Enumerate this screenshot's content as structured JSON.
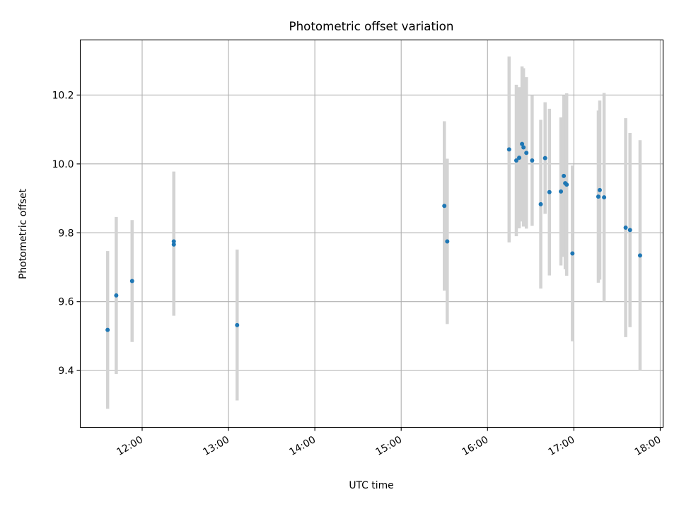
{
  "chart_data": {
    "type": "scatter",
    "title": "Photometric offset variation",
    "xlabel": "UTC time",
    "ylabel": "Photometric offset",
    "x_ticks": [
      "12:00",
      "13:00",
      "14:00",
      "15:00",
      "16:00",
      "17:00",
      "18:00"
    ],
    "y_ticks": [
      "9.4",
      "9.6",
      "9.8",
      "10.0",
      "10.2"
    ],
    "xlim": [
      "11:17",
      "18:02"
    ],
    "ylim": [
      9.235,
      10.36
    ],
    "grid": true,
    "legend": "none",
    "colors": {
      "points": "#1f77b4",
      "error_bars": "#d3d3d3",
      "grid": "#b0b0b0"
    },
    "points": [
      {
        "t": "11:36",
        "y": 9.518,
        "err": 0.229
      },
      {
        "t": "11:42",
        "y": 9.618,
        "err": 0.228
      },
      {
        "t": "11:53",
        "y": 9.66,
        "err": 0.177
      },
      {
        "t": "12:22",
        "y": 9.766,
        "err": 0.207
      },
      {
        "t": "12:22",
        "y": 9.775,
        "err": 0.203
      },
      {
        "t": "13:06",
        "y": 9.532,
        "err": 0.219
      },
      {
        "t": "15:30",
        "y": 9.878,
        "err": 0.246
      },
      {
        "t": "15:32",
        "y": 9.775,
        "err": 0.24
      },
      {
        "t": "16:15",
        "y": 10.042,
        "err": 0.27
      },
      {
        "t": "16:20",
        "y": 10.01,
        "err": 0.22
      },
      {
        "t": "16:22",
        "y": 10.018,
        "err": 0.205
      },
      {
        "t": "16:24",
        "y": 10.058,
        "err": 0.225
      },
      {
        "t": "16:25",
        "y": 10.048,
        "err": 0.23
      },
      {
        "t": "16:27",
        "y": 10.032,
        "err": 0.22
      },
      {
        "t": "16:31",
        "y": 10.01,
        "err": 0.19
      },
      {
        "t": "16:37",
        "y": 9.883,
        "err": 0.245
      },
      {
        "t": "16:40",
        "y": 10.017,
        "err": 0.162
      },
      {
        "t": "16:43",
        "y": 9.918,
        "err": 0.242
      },
      {
        "t": "16:51",
        "y": 9.92,
        "err": 0.215
      },
      {
        "t": "16:53",
        "y": 9.965,
        "err": 0.235
      },
      {
        "t": "16:54",
        "y": 9.944,
        "err": 0.25
      },
      {
        "t": "16:55",
        "y": 9.94,
        "err": 0.265
      },
      {
        "t": "16:59",
        "y": 9.74,
        "err": 0.255
      },
      {
        "t": "17:17",
        "y": 9.905,
        "err": 0.25
      },
      {
        "t": "17:18",
        "y": 9.924,
        "err": 0.26
      },
      {
        "t": "17:21",
        "y": 9.903,
        "err": 0.303
      },
      {
        "t": "17:36",
        "y": 9.815,
        "err": 0.318
      },
      {
        "t": "17:39",
        "y": 9.808,
        "err": 0.282
      },
      {
        "t": "17:46",
        "y": 9.734,
        "err": 0.335
      }
    ]
  }
}
